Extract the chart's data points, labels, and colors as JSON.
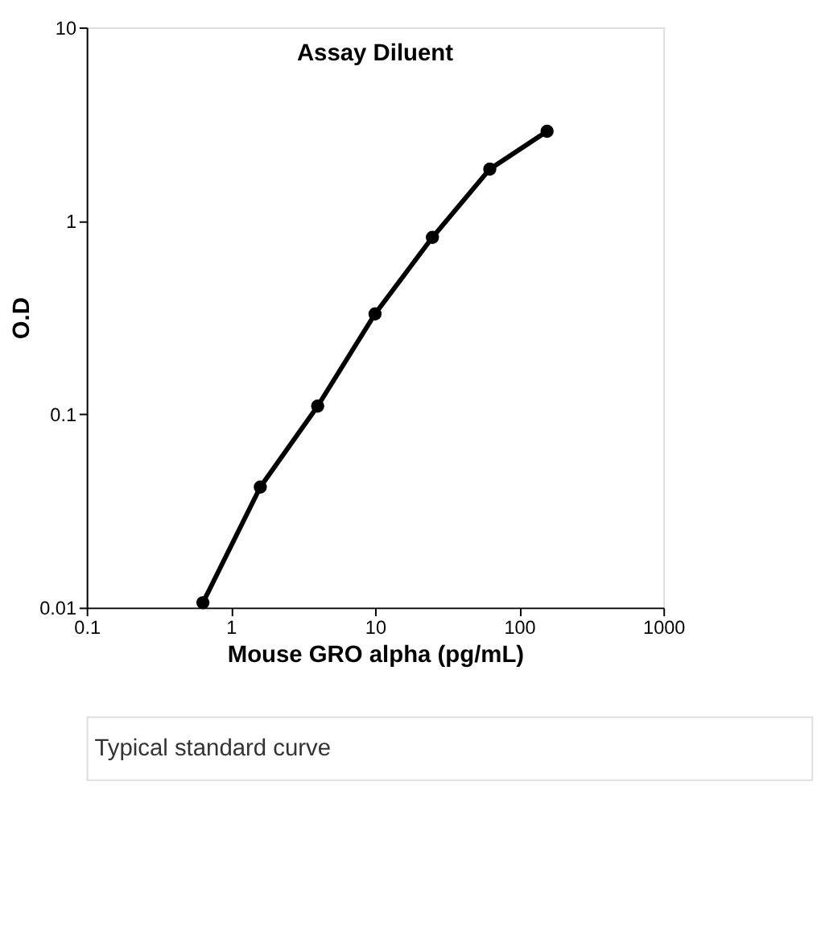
{
  "chart_data": {
    "type": "line",
    "title": "Assay Diluent",
    "xlabel": "Mouse GRO alpha (pg/mL)",
    "ylabel": "O.D",
    "x": [
      0.64,
      1.6,
      4,
      10,
      25,
      62.5,
      156
    ],
    "series": [
      {
        "color": "#000000",
        "values": [
          0.0106,
          0.042,
          0.11,
          0.33,
          0.82,
          1.85,
          2.9
        ]
      }
    ],
    "log": "xy",
    "xlim": [
      0.1,
      1000
    ],
    "ylim": [
      0.01,
      10
    ],
    "xticks": [
      0.1,
      1,
      10,
      100,
      1000
    ],
    "yticks": [
      0.01,
      0.1,
      1,
      10
    ],
    "grid": false,
    "marker": "circle",
    "line_style": "solid",
    "annotations": [
      "Typical standard curve"
    ]
  }
}
